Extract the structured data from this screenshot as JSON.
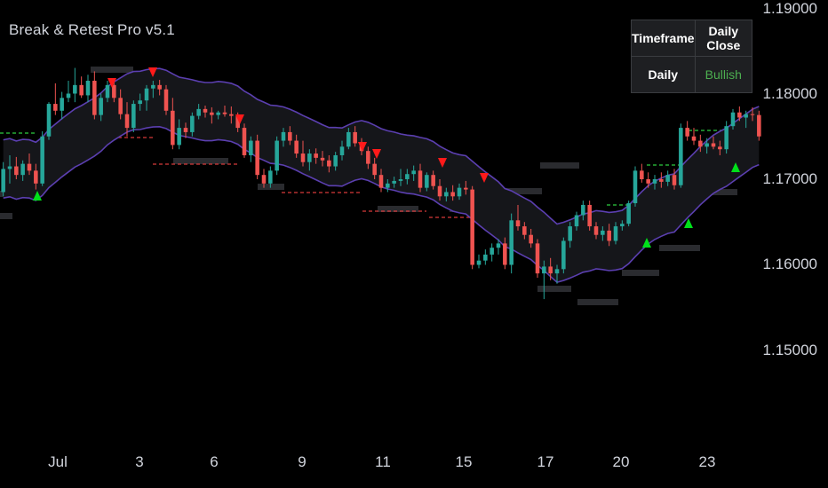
{
  "indicator_title": "Break & Retest Pro v5.1",
  "status_table": {
    "headers": [
      "Timeframe",
      "Daily Close"
    ],
    "row": [
      "Daily",
      "Bullish"
    ]
  },
  "colors": {
    "background": "#000000",
    "bull_candle": "#26a69a",
    "bear_candle": "#ef5350",
    "band_line": "#5b3fb0",
    "sell_signal": "#ff1a1a",
    "buy_signal": "#00e01a",
    "bullish_text": "#4caf50"
  },
  "chart_data": {
    "type": "candlestick",
    "y_axis": {
      "ticks": [
        "1.19000",
        "1.18000",
        "1.17000",
        "1.16000",
        "1.15000"
      ],
      "range": [
        1.1445,
        1.1915
      ]
    },
    "x_axis": {
      "ticks": [
        "Jul",
        "3",
        "6",
        "9",
        "11",
        "15",
        "17",
        "20",
        "23"
      ]
    },
    "grid": false,
    "candles": [
      [
        1.1685,
        1.172,
        1.168,
        1.1712
      ],
      [
        1.1712,
        1.1728,
        1.1695,
        1.1715
      ],
      [
        1.1715,
        1.1726,
        1.17,
        1.1705
      ],
      [
        1.1705,
        1.1722,
        1.1698,
        1.1718
      ],
      [
        1.1718,
        1.173,
        1.1705,
        1.171
      ],
      [
        1.171,
        1.1718,
        1.1688,
        1.1695
      ],
      [
        1.1695,
        1.1756,
        1.1692,
        1.175
      ],
      [
        1.175,
        1.179,
        1.1746,
        1.1788
      ],
      [
        1.1788,
        1.1812,
        1.1775,
        1.178
      ],
      [
        1.178,
        1.1802,
        1.177,
        1.1795
      ],
      [
        1.1795,
        1.1815,
        1.179,
        1.18
      ],
      [
        1.18,
        1.183,
        1.179,
        1.181
      ],
      [
        1.181,
        1.182,
        1.1795,
        1.1798
      ],
      [
        1.1798,
        1.1822,
        1.179,
        1.1815
      ],
      [
        1.1815,
        1.1826,
        1.177,
        1.1775
      ],
      [
        1.1775,
        1.18,
        1.1768,
        1.1795
      ],
      [
        1.1795,
        1.1815,
        1.179,
        1.181
      ],
      [
        1.181,
        1.1818,
        1.179,
        1.1795
      ],
      [
        1.1795,
        1.1805,
        1.177,
        1.1776
      ],
      [
        1.1776,
        1.179,
        1.175,
        1.176
      ],
      [
        1.176,
        1.1792,
        1.1755,
        1.1788
      ],
      [
        1.1788,
        1.18,
        1.178,
        1.1792
      ],
      [
        1.1792,
        1.181,
        1.178,
        1.1806
      ],
      [
        1.1806,
        1.1815,
        1.1795,
        1.181
      ],
      [
        1.181,
        1.1816,
        1.1798,
        1.1805
      ],
      [
        1.1805,
        1.181,
        1.1775,
        1.178
      ],
      [
        1.178,
        1.1795,
        1.1735,
        1.174
      ],
      [
        1.174,
        1.177,
        1.1735,
        1.176
      ],
      [
        1.176,
        1.1766,
        1.1748,
        1.1755
      ],
      [
        1.1755,
        1.1778,
        1.175,
        1.1774
      ],
      [
        1.1774,
        1.1788,
        1.177,
        1.1782
      ],
      [
        1.1782,
        1.1786,
        1.1772,
        1.1778
      ],
      [
        1.1778,
        1.1784,
        1.1765,
        1.1775
      ],
      [
        1.1775,
        1.178,
        1.177,
        1.1778
      ],
      [
        1.1778,
        1.1786,
        1.1773,
        1.1776
      ],
      [
        1.1776,
        1.1785,
        1.1765,
        1.1774
      ],
      [
        1.1774,
        1.1778,
        1.1755,
        1.176
      ],
      [
        1.176,
        1.1765,
        1.1725,
        1.1728
      ],
      [
        1.1728,
        1.175,
        1.172,
        1.1745
      ],
      [
        1.1745,
        1.1752,
        1.17,
        1.1705
      ],
      [
        1.1705,
        1.1712,
        1.169,
        1.1695
      ],
      [
        1.1695,
        1.1715,
        1.169,
        1.171
      ],
      [
        1.171,
        1.175,
        1.1705,
        1.1745
      ],
      [
        1.1745,
        1.176,
        1.1738,
        1.1755
      ],
      [
        1.1755,
        1.1762,
        1.174,
        1.1745
      ],
      [
        1.1745,
        1.1752,
        1.1725,
        1.173
      ],
      [
        1.173,
        1.1745,
        1.1715,
        1.172
      ],
      [
        1.172,
        1.1735,
        1.171,
        1.173
      ],
      [
        1.173,
        1.1736,
        1.1718,
        1.1725
      ],
      [
        1.1725,
        1.1733,
        1.1715,
        1.1722
      ],
      [
        1.1722,
        1.1728,
        1.1708,
        1.1715
      ],
      [
        1.1715,
        1.1732,
        1.171,
        1.1728
      ],
      [
        1.1728,
        1.1745,
        1.1722,
        1.1738
      ],
      [
        1.1738,
        1.176,
        1.1735,
        1.1755
      ],
      [
        1.1755,
        1.1762,
        1.1738,
        1.1742
      ],
      [
        1.1742,
        1.1748,
        1.1728,
        1.1733
      ],
      [
        1.1733,
        1.1738,
        1.1712,
        1.1718
      ],
      [
        1.1718,
        1.1725,
        1.17,
        1.1705
      ],
      [
        1.1705,
        1.1712,
        1.1685,
        1.169
      ],
      [
        1.169,
        1.17,
        1.1685,
        1.1695
      ],
      [
        1.1695,
        1.1703,
        1.169,
        1.1698
      ],
      [
        1.1698,
        1.1712,
        1.1692,
        1.17
      ],
      [
        1.17,
        1.1712,
        1.1694,
        1.1706
      ],
      [
        1.1706,
        1.1716,
        1.1698,
        1.171
      ],
      [
        1.171,
        1.1718,
        1.1685,
        1.169
      ],
      [
        1.169,
        1.1708,
        1.1686,
        1.1705
      ],
      [
        1.1705,
        1.171,
        1.1688,
        1.1692
      ],
      [
        1.1692,
        1.17,
        1.1675,
        1.168
      ],
      [
        1.168,
        1.169,
        1.1674,
        1.1685
      ],
      [
        1.1685,
        1.1693,
        1.1675,
        1.168
      ],
      [
        1.168,
        1.1695,
        1.1676,
        1.169
      ],
      [
        1.169,
        1.1698,
        1.1682,
        1.1688
      ],
      [
        1.1688,
        1.1692,
        1.1595,
        1.16
      ],
      [
        1.16,
        1.1612,
        1.1596,
        1.1605
      ],
      [
        1.1605,
        1.1618,
        1.16,
        1.1612
      ],
      [
        1.1612,
        1.1625,
        1.1604,
        1.162
      ],
      [
        1.162,
        1.163,
        1.1612,
        1.1625
      ],
      [
        1.1625,
        1.1632,
        1.1595,
        1.16
      ],
      [
        1.16,
        1.166,
        1.159,
        1.1652
      ],
      [
        1.1652,
        1.167,
        1.164,
        1.1645
      ],
      [
        1.1645,
        1.165,
        1.163,
        1.1635
      ],
      [
        1.1635,
        1.1642,
        1.162,
        1.1625
      ],
      [
        1.1625,
        1.163,
        1.1585,
        1.159
      ],
      [
        1.159,
        1.1605,
        1.156,
        1.1598
      ],
      [
        1.1598,
        1.1608,
        1.1582,
        1.159
      ],
      [
        1.159,
        1.16,
        1.1578,
        1.1595
      ],
      [
        1.1595,
        1.1632,
        1.159,
        1.1628
      ],
      [
        1.1628,
        1.165,
        1.162,
        1.1645
      ],
      [
        1.1645,
        1.1662,
        1.164,
        1.1658
      ],
      [
        1.1658,
        1.1675,
        1.1652,
        1.167
      ],
      [
        1.167,
        1.1675,
        1.164,
        1.1645
      ],
      [
        1.1645,
        1.165,
        1.163,
        1.1635
      ],
      [
        1.1635,
        1.1645,
        1.1628,
        1.164
      ],
      [
        1.164,
        1.1648,
        1.1622,
        1.1628
      ],
      [
        1.1628,
        1.165,
        1.1624,
        1.1645
      ],
      [
        1.1645,
        1.1652,
        1.164,
        1.1648
      ],
      [
        1.1648,
        1.1675,
        1.1645,
        1.1672
      ],
      [
        1.1672,
        1.1715,
        1.1668,
        1.171
      ],
      [
        1.171,
        1.1718,
        1.1696,
        1.17
      ],
      [
        1.17,
        1.1708,
        1.169,
        1.1695
      ],
      [
        1.1695,
        1.1705,
        1.1688,
        1.17
      ],
      [
        1.17,
        1.1708,
        1.169,
        1.1697
      ],
      [
        1.1697,
        1.171,
        1.1692,
        1.1705
      ],
      [
        1.1705,
        1.1712,
        1.1688,
        1.1693
      ],
      [
        1.1693,
        1.1765,
        1.169,
        1.176
      ],
      [
        1.176,
        1.1768,
        1.1745,
        1.175
      ],
      [
        1.175,
        1.176,
        1.174,
        1.1745
      ],
      [
        1.1745,
        1.1752,
        1.1732,
        1.1738
      ],
      [
        1.1738,
        1.1748,
        1.173,
        1.1742
      ],
      [
        1.1742,
        1.175,
        1.1735,
        1.1738
      ],
      [
        1.1738,
        1.1745,
        1.1728,
        1.1735
      ],
      [
        1.1735,
        1.1768,
        1.173,
        1.1762
      ],
      [
        1.1762,
        1.1782,
        1.1758,
        1.1778
      ],
      [
        1.1778,
        1.1785,
        1.1768,
        1.1772
      ],
      [
        1.1772,
        1.178,
        1.176,
        1.1776
      ],
      [
        1.1776,
        1.1784,
        1.1768,
        1.1775
      ],
      [
        1.1775,
        1.178,
        1.1745,
        1.175
      ]
    ]
  }
}
